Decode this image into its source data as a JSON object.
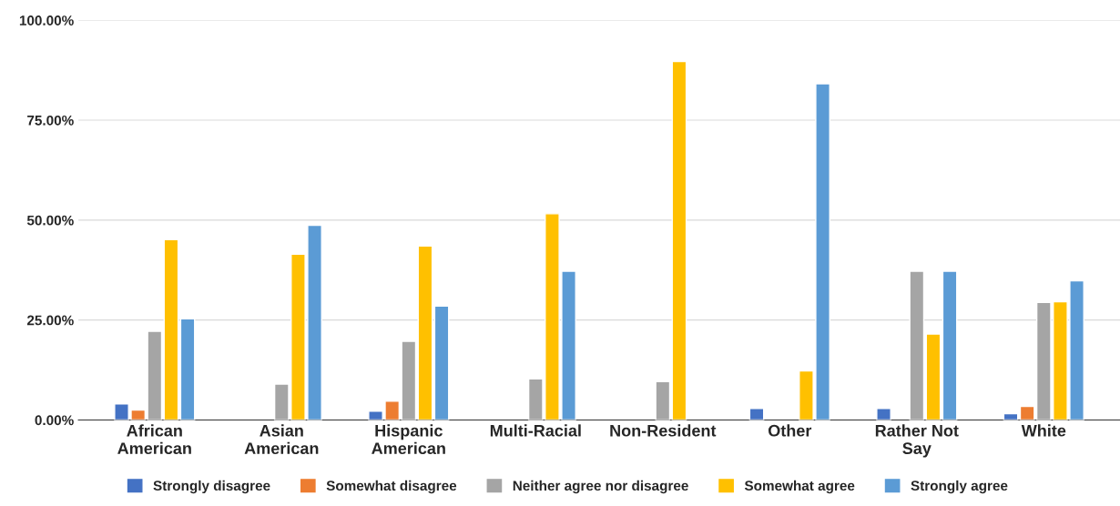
{
  "chart_data": {
    "type": "bar",
    "categories": [
      "African\nAmerican",
      "Asian\nAmerican",
      "Hispanic\nAmerican",
      "Multi-Racial",
      "Non-Resident",
      "Other",
      "Rather Not\nSay",
      "White"
    ],
    "series": [
      {
        "name": "Strongly disagree",
        "color": "#4472c4",
        "values": [
          4.0,
          null,
          2.2,
          null,
          null,
          2.9,
          2.9,
          1.6
        ]
      },
      {
        "name": "Somewhat disagree",
        "color": "#ed7d31",
        "values": [
          2.5,
          null,
          4.7,
          null,
          null,
          null,
          null,
          3.4
        ]
      },
      {
        "name": "Neither agree nor disagree",
        "color": "#a5a5a5",
        "values": [
          22.2,
          9.0,
          19.7,
          10.3,
          9.6,
          null,
          37.2,
          29.4
        ]
      },
      {
        "name": "Somewhat agree",
        "color": "#ffc000",
        "values": [
          45.1,
          41.5,
          43.5,
          51.6,
          89.7,
          12.3,
          21.5,
          29.6
        ]
      },
      {
        "name": "Strongly agree",
        "color": "#5b9bd5",
        "values": [
          25.3,
          48.7,
          28.5,
          37.2,
          null,
          84.1,
          37.2,
          34.8
        ]
      }
    ],
    "ylim": [
      0,
      100
    ],
    "yticks": [
      {
        "value": 0,
        "label": "0.00%"
      },
      {
        "value": 25,
        "label": "25.00%"
      },
      {
        "value": 50,
        "label": "50.00%"
      },
      {
        "value": 75,
        "label": "75.00%"
      },
      {
        "value": 100,
        "label": "100.00%"
      }
    ],
    "grid": "y",
    "legend": "bottom"
  }
}
